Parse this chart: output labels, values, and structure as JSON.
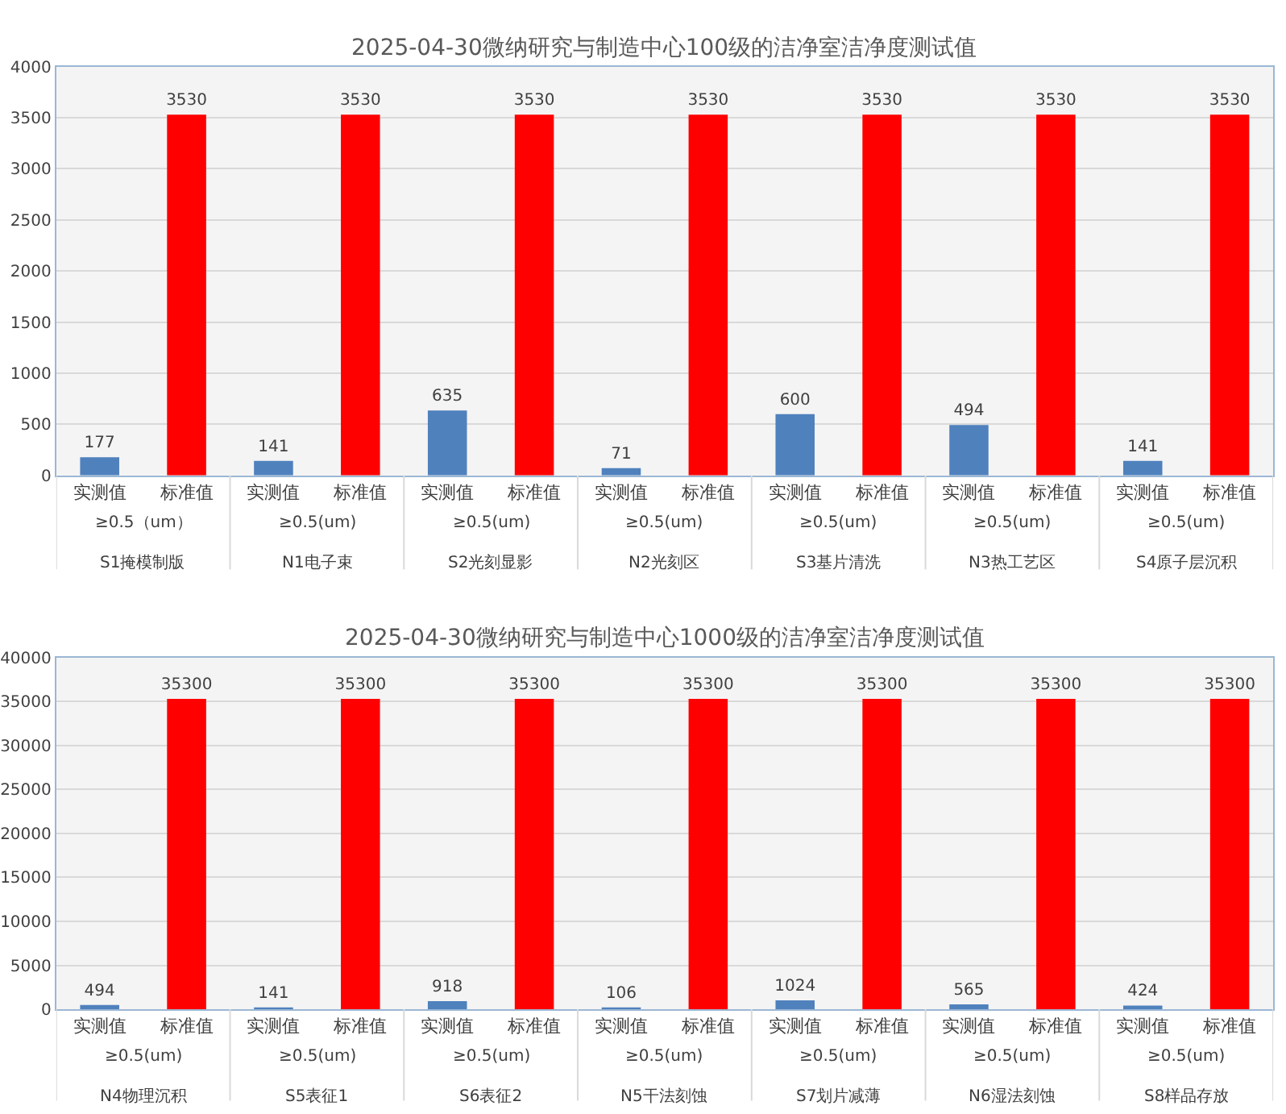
{
  "chart_data": [
    {
      "type": "bar",
      "title": "2025-04-30微纳研究与制造中心100级的洁净室洁净度测试值",
      "categories": [
        "实测值",
        "标准值",
        "实测值",
        "标准值",
        "实测值",
        "标准值",
        "实测值",
        "标准值",
        "实测值",
        "标准值",
        "实测值",
        "标准值",
        "实测值",
        "标准值"
      ],
      "values": [
        177,
        3530,
        141,
        3530,
        635,
        3530,
        71,
        3530,
        600,
        3530,
        494,
        3530,
        141,
        3530
      ],
      "colors": [
        "#4f81bd",
        "#ff0000",
        "#4f81bd",
        "#ff0000",
        "#4f81bd",
        "#ff0000",
        "#4f81bd",
        "#ff0000",
        "#4f81bd",
        "#ff0000",
        "#4f81bd",
        "#ff0000",
        "#4f81bd",
        "#ff0000"
      ],
      "ylim": [
        0,
        4000
      ],
      "yticks": [
        0,
        500,
        1000,
        1500,
        2000,
        2500,
        3000,
        3500,
        4000
      ],
      "grid": "y",
      "data_labels": true,
      "legend": false,
      "annotations": [
        "≥0.5（um）",
        "S1掩模制版",
        "≥0.5(um)",
        "N1电子束",
        "≥0.5(um)",
        "S2光刻显影",
        "≥0.5(um)",
        "N2光刻区",
        "≥0.5(um)",
        "S3基片清洗",
        "≥0.5(um)",
        "N3热工艺区",
        "≥0.5(um)",
        "S4原子层沉积"
      ]
    },
    {
      "type": "bar",
      "title": "2025-04-30微纳研究与制造中心1000级的洁净室洁净度测试值",
      "categories": [
        "实测值",
        "标准值",
        "实测值",
        "标准值",
        "实测值",
        "标准值",
        "实测值",
        "标准值",
        "实测值",
        "标准值",
        "实测值",
        "标准值",
        "实测值",
        "标准值"
      ],
      "values": [
        494,
        35300,
        141,
        35300,
        918,
        35300,
        106,
        35300,
        1024,
        35300,
        565,
        35300,
        424,
        35300
      ],
      "colors": [
        "#4f81bd",
        "#ff0000",
        "#4f81bd",
        "#ff0000",
        "#4f81bd",
        "#ff0000",
        "#4f81bd",
        "#ff0000",
        "#4f81bd",
        "#ff0000",
        "#4f81bd",
        "#ff0000",
        "#4f81bd",
        "#ff0000"
      ],
      "ylim": [
        0,
        40000
      ],
      "yticks": [
        0,
        5000,
        10000,
        15000,
        20000,
        25000,
        30000,
        35000,
        40000
      ],
      "grid": "y",
      "data_labels": true,
      "legend": false,
      "annotations": [
        "≥0.5(um)",
        "N4物理沉积",
        "≥0.5(um)",
        "S5表征1",
        "≥0.5(um)",
        "S6表征2",
        "≥0.5(um)",
        "N5干法刻蚀",
        "≥0.5(um)",
        "S7划片减薄",
        "≥0.5(um)",
        "N6湿法刻蚀",
        "≥0.5(um)",
        "S8样品存放"
      ]
    }
  ]
}
